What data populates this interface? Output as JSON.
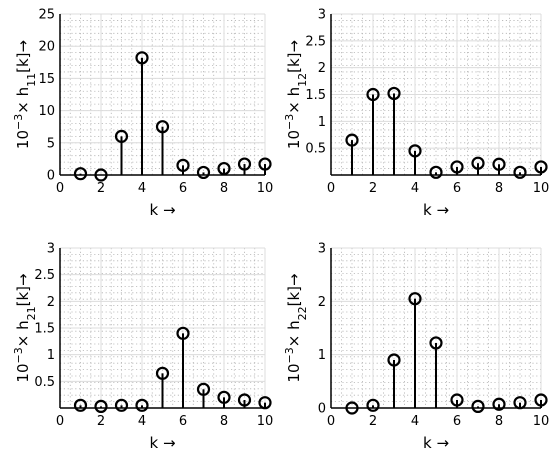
{
  "chart_data": [
    {
      "type": "stem",
      "xlabel": "k →",
      "ylabel": {
        "scale": "10",
        "exp": "−3",
        "times": "×",
        "sym": "h",
        "sub": "11",
        "tail": "[k]→"
      },
      "xlim": [
        0,
        10
      ],
      "ylim": [
        0,
        25
      ],
      "xticks": [
        0,
        2,
        4,
        6,
        8,
        10
      ],
      "yticks": [
        0,
        5,
        10,
        15,
        20,
        25
      ],
      "ytick_labels": [
        "0",
        "5",
        "10",
        "15",
        "20",
        "25"
      ],
      "grid": true,
      "x": [
        1,
        2,
        3,
        4,
        5,
        6,
        7,
        8,
        9,
        10
      ],
      "y": [
        0.2,
        0.0,
        6.0,
        18.2,
        7.5,
        1.5,
        0.4,
        1.0,
        1.7,
        1.7
      ]
    },
    {
      "type": "stem",
      "xlabel": "k →",
      "ylabel": {
        "scale": "10",
        "exp": "−3",
        "times": "×",
        "sym": "h",
        "sub": "12",
        "tail": "[k]→"
      },
      "xlim": [
        0,
        10
      ],
      "ylim": [
        0,
        3
      ],
      "xticks": [
        0,
        2,
        4,
        6,
        8,
        10
      ],
      "yticks": [
        0.5,
        1,
        1.5,
        2,
        2.5,
        3
      ],
      "ytick_labels": [
        "0.5",
        "1",
        "1.5",
        "2",
        "2.5",
        "3"
      ],
      "grid": true,
      "x": [
        1,
        2,
        3,
        4,
        5,
        6,
        7,
        8,
        9,
        10
      ],
      "y": [
        0.65,
        1.5,
        1.52,
        0.45,
        0.05,
        0.15,
        0.22,
        0.2,
        0.05,
        0.15
      ]
    },
    {
      "type": "stem",
      "xlabel": "k →",
      "ylabel": {
        "scale": "10",
        "exp": "−3",
        "times": "×",
        "sym": "h",
        "sub": "21",
        "tail": "[k]→"
      },
      "xlim": [
        0,
        10
      ],
      "ylim": [
        0,
        3
      ],
      "xticks": [
        0,
        2,
        4,
        6,
        8,
        10
      ],
      "yticks": [
        0.5,
        1,
        1.5,
        2,
        2.5,
        3
      ],
      "ytick_labels": [
        "0.5",
        "1",
        "1.5",
        "2",
        "2.5",
        "3"
      ],
      "grid": true,
      "x": [
        1,
        2,
        3,
        4,
        5,
        6,
        7,
        8,
        9,
        10
      ],
      "y": [
        0.05,
        0.03,
        0.05,
        0.05,
        0.65,
        1.4,
        0.35,
        0.2,
        0.15,
        0.1
      ]
    },
    {
      "type": "stem",
      "xlabel": "k →",
      "ylabel": {
        "scale": "10",
        "exp": "−3",
        "times": "×",
        "sym": "h",
        "sub": "22",
        "tail": "[k]→"
      },
      "xlim": [
        0,
        10
      ],
      "ylim": [
        0,
        3
      ],
      "xticks": [
        0,
        2,
        4,
        6,
        8,
        10
      ],
      "yticks": [
        0,
        1,
        2,
        3
      ],
      "ytick_labels": [
        "0",
        "1",
        "2",
        "3"
      ],
      "grid": true,
      "x": [
        1,
        2,
        3,
        4,
        5,
        6,
        7,
        8,
        9,
        10
      ],
      "y": [
        0.0,
        0.05,
        0.9,
        2.05,
        1.22,
        0.15,
        0.03,
        0.07,
        0.1,
        0.15
      ]
    }
  ]
}
